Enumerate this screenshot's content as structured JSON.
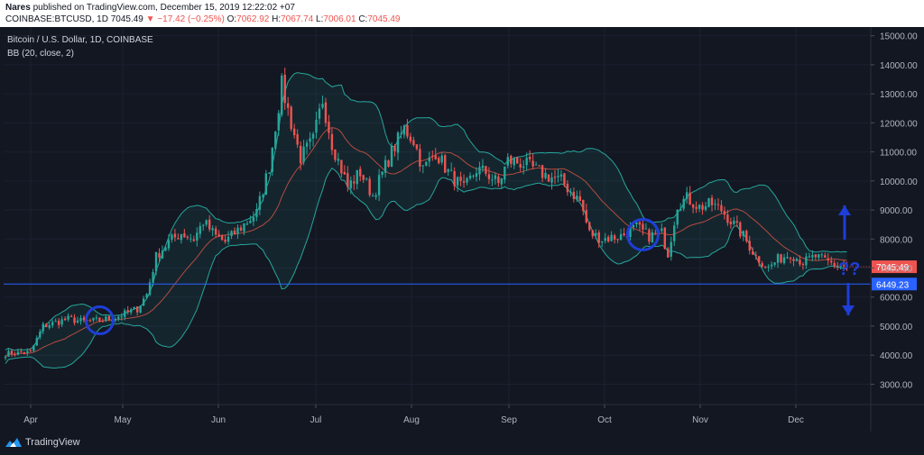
{
  "header": {
    "author": "Nares",
    "published_text": "published on TradingView.com, December 15, 2019 12:22:02 +07",
    "symbol": "COINBASE:BTCUSD, 1D",
    "last": "7045.49",
    "change_arrow": "▼",
    "change": "−17.42 (−0.25%)",
    "o_label": "O:",
    "o_val": "7062.92",
    "h_label": "H:",
    "h_val": "7067.74",
    "l_label": "L:",
    "l_val": "7006.01",
    "c_label": "C:",
    "c_val": "7045.49"
  },
  "legend": {
    "title": "Bitcoin / U.S. Dollar, 1D, COINBASE",
    "indicator": "BB (20, close, 2)"
  },
  "footer": {
    "brand": "TradingView"
  },
  "colors": {
    "background": "#131722",
    "up": "#26a69a",
    "down": "#ef5350",
    "band": "#26a69a",
    "basis": "#b24b3f",
    "hline": "#2962ff",
    "annotation": "#1e3ed8",
    "axis_text": "#b2b5be"
  },
  "chart_data": {
    "type": "candlestick",
    "y_axis": {
      "range": [
        2300,
        15300
      ],
      "ticks": [
        "3000.00",
        "4000.00",
        "5000.00",
        "6000.00",
        "7000.00",
        "8000.00",
        "9000.00",
        "10000.00",
        "11000.00",
        "12000.00",
        "13000.00",
        "14000.00",
        "15000.00"
      ]
    },
    "x_axis": {
      "labels": [
        "Apr",
        "May",
        "Jun",
        "Jul",
        "Aug",
        "Sep",
        "Oct",
        "Nov",
        "Dec"
      ]
    },
    "price_label": "7045.49",
    "level_label": "6449.23",
    "level_value": 6449.23,
    "annotation_text": "??",
    "trend": [
      [
        0,
        4050
      ],
      [
        8,
        4100
      ],
      [
        12,
        5000
      ],
      [
        20,
        5250
      ],
      [
        25,
        5150
      ],
      [
        30,
        5200
      ],
      [
        35,
        5300
      ],
      [
        42,
        5600
      ],
      [
        45,
        6100
      ],
      [
        48,
        7400
      ],
      [
        52,
        7900
      ],
      [
        56,
        8200
      ],
      [
        60,
        8000
      ],
      [
        63,
        8600
      ],
      [
        67,
        8100
      ],
      [
        70,
        7900
      ],
      [
        75,
        8400
      ],
      [
        80,
        8900
      ],
      [
        84,
        10500
      ],
      [
        88,
        13300
      ],
      [
        91,
        12000
      ],
      [
        94,
        10800
      ],
      [
        98,
        11400
      ],
      [
        101,
        12800
      ],
      [
        104,
        11300
      ],
      [
        109,
        9800
      ],
      [
        113,
        10300
      ],
      [
        117,
        9500
      ],
      [
        123,
        11000
      ],
      [
        127,
        11800
      ],
      [
        130,
        11400
      ],
      [
        133,
        10400
      ],
      [
        137,
        11000
      ],
      [
        141,
        10300
      ],
      [
        146,
        9700
      ],
      [
        150,
        10400
      ],
      [
        153,
        10300
      ],
      [
        157,
        9900
      ],
      [
        160,
        10700
      ],
      [
        165,
        10600
      ],
      [
        172,
        10200
      ],
      [
        177,
        10000
      ],
      [
        183,
        9300
      ],
      [
        186,
        8200
      ],
      [
        190,
        8000
      ],
      [
        196,
        8100
      ],
      [
        201,
        8400
      ],
      [
        205,
        8100
      ],
      [
        209,
        8200
      ],
      [
        211,
        7500
      ],
      [
        214,
        9200
      ],
      [
        217,
        9400
      ],
      [
        221,
        9100
      ],
      [
        225,
        9200
      ],
      [
        228,
        9000
      ],
      [
        232,
        8500
      ],
      [
        235,
        8100
      ],
      [
        239,
        7400
      ],
      [
        243,
        7000
      ],
      [
        246,
        7300
      ],
      [
        250,
        7500
      ],
      [
        254,
        7200
      ],
      [
        258,
        7400
      ],
      [
        262,
        7200
      ],
      [
        265,
        7100
      ],
      [
        268,
        7045
      ]
    ]
  }
}
